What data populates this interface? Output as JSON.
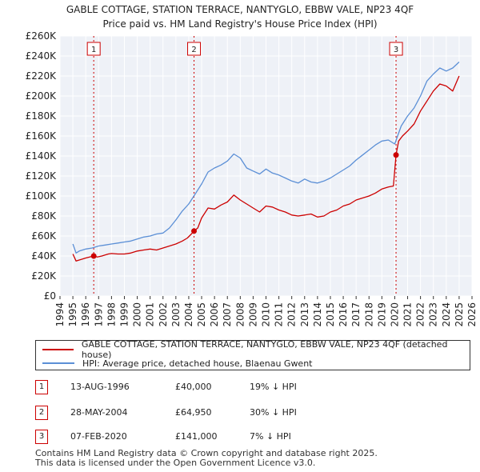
{
  "chart_data": {
    "type": "line",
    "title": "GABLE COTTAGE, STATION TERRACE, NANTYGLO, EBBW VALE, NP23 4QF",
    "subtitle": "Price paid vs. HM Land Registry's House Price Index (HPI)",
    "ylim": [
      0,
      260000
    ],
    "xlim": [
      1994,
      2026
    ],
    "y_tick_labels": [
      "£0",
      "£20K",
      "£40K",
      "£60K",
      "£80K",
      "£100K",
      "£120K",
      "£140K",
      "£160K",
      "£180K",
      "£200K",
      "£220K",
      "£240K",
      "£260K"
    ],
    "x_tick_labels": [
      "1994",
      "1995",
      "1996",
      "1997",
      "1998",
      "1999",
      "2000",
      "2001",
      "2002",
      "2003",
      "2004",
      "2005",
      "2006",
      "2007",
      "2008",
      "2009",
      "2010",
      "2011",
      "2012",
      "2013",
      "2014",
      "2015",
      "2016",
      "2017",
      "2018",
      "2019",
      "2020",
      "2021",
      "2022",
      "2023",
      "2024",
      "2025",
      "2026"
    ],
    "series": [
      {
        "name": "GABLE COTTAGE, STATION TERRACE, NANTYGLO, EBBW VALE, NP23 4QF (detached house)",
        "color": "#cc0000",
        "x": [
          1995.0,
          1995.25,
          1995.5,
          1995.75,
          1996.0,
          1996.3,
          1996.62,
          1996.9,
          1997.25,
          1997.5,
          1997.75,
          1998.0,
          1998.5,
          1999.0,
          1999.5,
          2000.0,
          2000.5,
          2001.0,
          2001.5,
          2002.0,
          2002.5,
          2003.0,
          2003.5,
          2003.9,
          2004.2,
          2004.41,
          2004.7,
          2005.0,
          2005.5,
          2006.0,
          2006.5,
          2007.0,
          2007.5,
          2008.0,
          2008.5,
          2009.0,
          2009.5,
          2010.0,
          2010.5,
          2011.0,
          2011.5,
          2012.0,
          2012.5,
          2013.0,
          2013.5,
          2014.0,
          2014.5,
          2015.0,
          2015.5,
          2016.0,
          2016.5,
          2017.0,
          2017.5,
          2018.0,
          2018.5,
          2019.0,
          2019.5,
          2019.9,
          2020.1,
          2020.3,
          2020.6,
          2021.0,
          2021.5,
          2022.0,
          2022.5,
          2023.0,
          2023.5,
          2024.0,
          2024.5,
          2025.0
        ],
        "values": [
          42000,
          35000,
          36000,
          37000,
          38000,
          39000,
          40000,
          39000,
          40000,
          41000,
          42000,
          42500,
          42000,
          42000,
          43000,
          45000,
          46000,
          47000,
          46000,
          48000,
          50000,
          52000,
          55000,
          58000,
          62000,
          64950,
          68000,
          78000,
          88000,
          87000,
          91000,
          94000,
          101000,
          96000,
          92000,
          88000,
          84000,
          90000,
          89000,
          86000,
          84000,
          81000,
          80000,
          81000,
          82000,
          79000,
          80000,
          84000,
          86000,
          90000,
          92000,
          96000,
          98000,
          100000,
          103000,
          107000,
          109000,
          110000,
          141000,
          155000,
          160000,
          165000,
          172000,
          185000,
          195000,
          205000,
          212000,
          210000,
          205000,
          220000
        ]
      },
      {
        "name": "HPI: Average price, detached house, Blaenau Gwent",
        "color": "#5b8fd6",
        "x": [
          1995.0,
          1995.25,
          1995.5,
          1995.75,
          1996.0,
          1996.5,
          1997.0,
          1997.5,
          1998.0,
          1998.5,
          1999.0,
          1999.5,
          2000.0,
          2000.5,
          2001.0,
          2001.5,
          2002.0,
          2002.5,
          2003.0,
          2003.5,
          2004.0,
          2004.5,
          2005.0,
          2005.5,
          2006.0,
          2006.5,
          2007.0,
          2007.5,
          2008.0,
          2008.5,
          2009.0,
          2009.5,
          2010.0,
          2010.5,
          2011.0,
          2011.5,
          2012.0,
          2012.5,
          2013.0,
          2013.5,
          2014.0,
          2014.5,
          2015.0,
          2015.5,
          2016.0,
          2016.5,
          2017.0,
          2017.5,
          2018.0,
          2018.5,
          2019.0,
          2019.5,
          2020.0,
          2020.5,
          2021.0,
          2021.5,
          2022.0,
          2022.5,
          2023.0,
          2023.5,
          2024.0,
          2024.5,
          2025.0
        ],
        "values": [
          52000,
          43000,
          45000,
          46000,
          47000,
          48000,
          50000,
          51000,
          52000,
          53000,
          54000,
          55000,
          57000,
          59000,
          60000,
          62000,
          63000,
          68000,
          76000,
          85000,
          92000,
          102000,
          112000,
          124000,
          128000,
          131000,
          135000,
          142000,
          138000,
          128000,
          125000,
          122000,
          127000,
          123000,
          121000,
          118000,
          115000,
          113000,
          117000,
          114000,
          113000,
          115000,
          118000,
          122000,
          126000,
          130000,
          136000,
          141000,
          146000,
          151000,
          155000,
          156000,
          152000,
          170000,
          180000,
          188000,
          200000,
          215000,
          222000,
          228000,
          225000,
          228000,
          234000
        ]
      }
    ],
    "events": [
      {
        "label": "1",
        "x": 1996.62,
        "value": 40000
      },
      {
        "label": "2",
        "x": 2004.41,
        "value": 64950
      },
      {
        "label": "3",
        "x": 2020.1,
        "value": 141000
      }
    ]
  },
  "legend": {
    "property": "GABLE COTTAGE, STATION TERRACE, NANTYGLO, EBBW VALE, NP23 4QF (detached house)",
    "hpi": "HPI: Average price, detached house, Blaenau Gwent",
    "property_color": "#cc0000",
    "hpi_color": "#5b8fd6"
  },
  "transactions": [
    {
      "num": "1",
      "date": "13-AUG-1996",
      "price": "£40,000",
      "hpi": "19% ↓ HPI"
    },
    {
      "num": "2",
      "date": "28-MAY-2004",
      "price": "£64,950",
      "hpi": "30% ↓ HPI"
    },
    {
      "num": "3",
      "date": "07-FEB-2020",
      "price": "£141,000",
      "hpi": "7% ↓ HPI"
    }
  ],
  "footer": {
    "line1": "Contains HM Land Registry data © Crown copyright and database right 2025.",
    "line2": "This data is licensed under the Open Government Licence v3.0."
  }
}
